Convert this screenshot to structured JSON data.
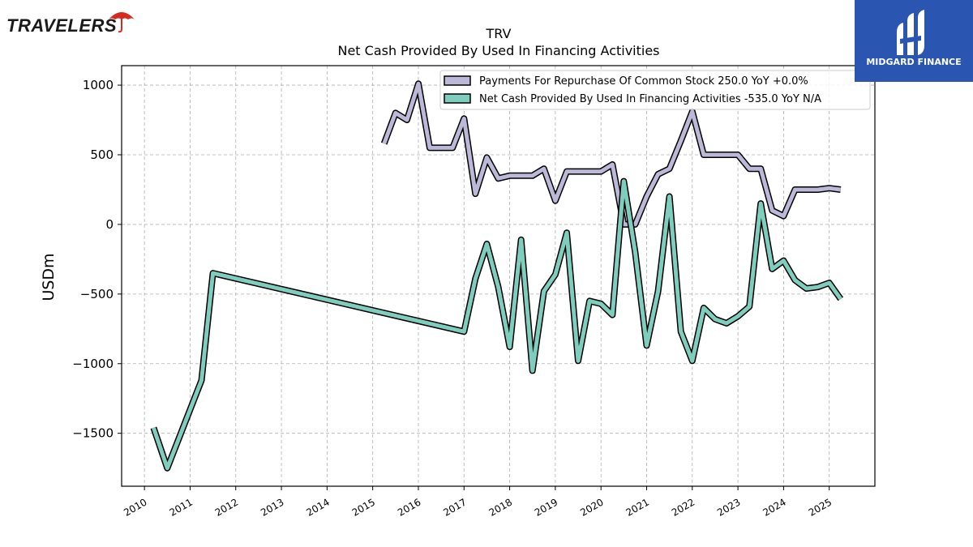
{
  "brand": {
    "left_logo_text": "TRAVELERS",
    "right_logo_text": "MIDGARD FINANCE",
    "right_logo_color": "#2a55b0",
    "left_logo_umbrella_color": "#d52b1e"
  },
  "chart_data": {
    "type": "line",
    "title": "TRV",
    "subtitle": "Net Cash Provided By Used In Financing Activities",
    "xlabel": "",
    "ylabel": "USDm",
    "xlim": [
      2009.5,
      2026.0
    ],
    "ylim": [
      -1880,
      1140
    ],
    "yticks": [
      1000,
      500,
      0,
      -500,
      -1000,
      -1500
    ],
    "ytick_labels": [
      "1000",
      "500",
      "0",
      "−500",
      "−1000",
      "−1500"
    ],
    "xticks": [
      2010,
      2011,
      2012,
      2013,
      2014,
      2015,
      2016,
      2017,
      2018,
      2019,
      2020,
      2021,
      2022,
      2023,
      2024,
      2025
    ],
    "xtick_labels": [
      "2010",
      "2011",
      "2012",
      "2013",
      "2014",
      "2015",
      "2016",
      "2017",
      "2018",
      "2019",
      "2020",
      "2021",
      "2022",
      "2023",
      "2024",
      "2025"
    ],
    "grid": true,
    "legend_position": "top-right",
    "series": [
      {
        "name": "Payments For Repurchase Of Common Stock",
        "legend_label": "Payments For Repurchase Of Common Stock  250.0 YoY +0.0%",
        "color": "#bcb8d8",
        "points": [
          [
            2015.25,
            580
          ],
          [
            2015.5,
            800
          ],
          [
            2015.75,
            750
          ],
          [
            2016.0,
            1010
          ],
          [
            2016.25,
            550
          ],
          [
            2016.5,
            550
          ],
          [
            2016.75,
            550
          ],
          [
            2017.0,
            760
          ],
          [
            2017.25,
            220
          ],
          [
            2017.5,
            480
          ],
          [
            2017.75,
            330
          ],
          [
            2018.0,
            350
          ],
          [
            2018.25,
            350
          ],
          [
            2018.5,
            350
          ],
          [
            2018.75,
            400
          ],
          [
            2019.0,
            170
          ],
          [
            2019.25,
            380
          ],
          [
            2019.5,
            380
          ],
          [
            2019.75,
            380
          ],
          [
            2020.0,
            380
          ],
          [
            2020.25,
            430
          ],
          [
            2020.5,
            0
          ],
          [
            2020.75,
            0
          ],
          [
            2021.0,
            200
          ],
          [
            2021.25,
            360
          ],
          [
            2021.5,
            400
          ],
          [
            2021.75,
            600
          ],
          [
            2022.0,
            810
          ],
          [
            2022.25,
            500
          ],
          [
            2022.5,
            500
          ],
          [
            2022.75,
            500
          ],
          [
            2023.0,
            500
          ],
          [
            2023.25,
            400
          ],
          [
            2023.5,
            400
          ],
          [
            2023.75,
            100
          ],
          [
            2024.0,
            60
          ],
          [
            2024.25,
            250
          ],
          [
            2024.5,
            250
          ],
          [
            2024.75,
            250
          ],
          [
            2025.0,
            260
          ],
          [
            2025.25,
            250
          ]
        ]
      },
      {
        "name": "Net Cash Provided By Used In Financing Activities",
        "legend_label": "Net Cash Provided By Used In Financing Activities  -535.0 YoY N/A",
        "color": "#7ecdbd",
        "points": [
          [
            2010.2,
            -1460
          ],
          [
            2010.5,
            -1750
          ],
          [
            2011.25,
            -1120
          ],
          [
            2011.5,
            -350
          ],
          [
            2017.0,
            -770
          ],
          [
            2017.25,
            -390
          ],
          [
            2017.5,
            -140
          ],
          [
            2017.75,
            -450
          ],
          [
            2018.0,
            -880
          ],
          [
            2018.25,
            -110
          ],
          [
            2018.5,
            -1050
          ],
          [
            2018.75,
            -480
          ],
          [
            2019.0,
            -360
          ],
          [
            2019.25,
            -60
          ],
          [
            2019.5,
            -980
          ],
          [
            2019.75,
            -550
          ],
          [
            2020.0,
            -570
          ],
          [
            2020.25,
            -650
          ],
          [
            2020.5,
            310
          ],
          [
            2020.75,
            -200
          ],
          [
            2021.0,
            -870
          ],
          [
            2021.25,
            -480
          ],
          [
            2021.5,
            200
          ],
          [
            2021.75,
            -770
          ],
          [
            2022.0,
            -980
          ],
          [
            2022.25,
            -600
          ],
          [
            2022.5,
            -680
          ],
          [
            2022.75,
            -710
          ],
          [
            2023.0,
            -660
          ],
          [
            2023.25,
            -590
          ],
          [
            2023.5,
            150
          ],
          [
            2023.75,
            -320
          ],
          [
            2024.0,
            -260
          ],
          [
            2024.25,
            -400
          ],
          [
            2024.5,
            -460
          ],
          [
            2024.75,
            -450
          ],
          [
            2025.0,
            -420
          ],
          [
            2025.25,
            -535
          ]
        ]
      }
    ]
  }
}
